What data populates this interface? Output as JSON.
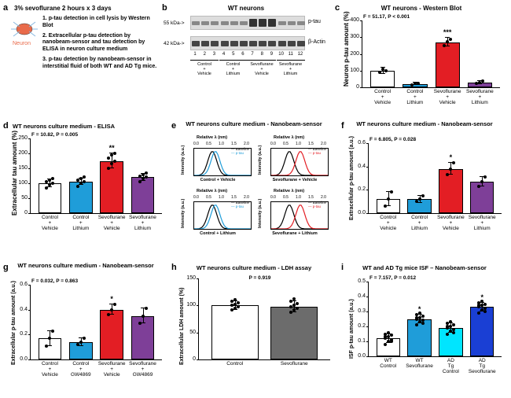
{
  "a": {
    "label": "a",
    "header": "3% sevoflurane 2 hours x 3 days",
    "neuron_label": "Neuron",
    "items": [
      "1. p-tau detection in cell lysis by Western Blot",
      "2. Extracellular p-tau detection by nanobeam-sensor and tau detection by ELISA in neuron culture medium",
      "3. p-tau detection by nanobeam-sensor in interstitial fluid of both WT and AD Tg mice."
    ]
  },
  "b": {
    "label": "b",
    "title": "WT neurons",
    "bands": [
      "p-tau",
      "β-Actin"
    ],
    "kda": [
      "55 kDa->",
      "42 kDa->"
    ],
    "lanes": [
      "1",
      "2",
      "3",
      "4",
      "5",
      "6",
      "7",
      "8",
      "9",
      "10",
      "11",
      "12"
    ],
    "groups": [
      "Control + Vehicle",
      "Control + Lithium",
      "Sevoflurane + Vehicle",
      "Sevoflurane + Lithium"
    ]
  },
  "c": {
    "label": "c",
    "title": "WT neurons - Western Blot",
    "ylab": "Neuron p-tau amount (%)",
    "ftext": "F = 51.17, P < 0.001",
    "ylim": [
      0,
      400
    ],
    "ytick_step": 100,
    "cats": [
      "Control + Vehicle",
      "Control + Lithium",
      "Sevoflurane + Vehicle",
      "Sevoflurane + Lithium"
    ],
    "values": [
      100,
      20,
      270,
      30
    ],
    "err": [
      20,
      8,
      25,
      10
    ],
    "colors": [
      "#ffffff",
      "#1f9dd9",
      "#e31e24",
      "#7e3f98"
    ],
    "sig": {
      "idx": 2,
      "text": "***"
    },
    "points": [
      [
        90,
        110,
        100
      ],
      [
        15,
        22,
        24
      ],
      [
        250,
        275,
        285
      ],
      [
        22,
        28,
        40
      ]
    ]
  },
  "d": {
    "label": "d",
    "title": "WT neurons culture medium - ELISA",
    "ylab": "Extracellular tau amount (%)",
    "ftext": "F = 10.82, P = 0.005",
    "ylim": [
      0,
      250
    ],
    "ytick_step": 50,
    "cats": [
      "Control + Vehicle",
      "Control + Lithium",
      "Sevoflurane + Vehicle",
      "Sevoflurane + Lithium"
    ],
    "values": [
      100,
      105,
      175,
      120
    ],
    "err": [
      12,
      10,
      25,
      12
    ],
    "colors": [
      "#ffffff",
      "#1f9dd9",
      "#e31e24",
      "#7e3f98"
    ],
    "sig": {
      "idx": 2,
      "text": "**"
    },
    "points": [
      [
        85,
        95,
        100,
        105,
        110,
        115
      ],
      [
        90,
        100,
        105,
        110,
        115,
        120
      ],
      [
        150,
        165,
        175,
        185,
        195,
        200
      ],
      [
        105,
        115,
        120,
        125,
        130,
        135
      ]
    ]
  },
  "e": {
    "label": "e",
    "title": "WT neurons culture medium - Nanobeam-sensor",
    "sub_titles": [
      "Control + Vehicle",
      "Sevoflurane + Vehicle",
      "Control + Lithium",
      "Sevoflurane + Lithium"
    ],
    "axis_x": "Relative λ (nm)",
    "axis_y": "Intensity (a.u.)",
    "xticks": [
      "0.0",
      "0.5",
      "1.0",
      "1.5",
      "2.0"
    ],
    "legend": [
      "Baseline",
      "p-tau"
    ],
    "colors": {
      "baseline": "#000000",
      "ctrl": "#1f9dd9",
      "sevo": "#e31e24"
    }
  },
  "f": {
    "label": "f",
    "title": "WT neurons culture medium - Nanobeam-sensor",
    "ylab": "Extracellular p-tau amount (a.u.)",
    "ftext": "F = 6.805, P = 0.028",
    "ylim": [
      0,
      0.6
    ],
    "ytick_step": 0.2,
    "cats": [
      "Control + Vehicle",
      "Control + Lithium",
      "Sevoflurane + Vehicle",
      "Sevoflurane + Lithium"
    ],
    "values": [
      0.12,
      0.12,
      0.38,
      0.27
    ],
    "err": [
      0.06,
      0.03,
      0.05,
      0.04
    ],
    "colors": [
      "#ffffff",
      "#1f9dd9",
      "#e31e24",
      "#7e3f98"
    ],
    "sig": {
      "idx": 2,
      "text": "*"
    },
    "points": [
      [
        0.06,
        0.12,
        0.18
      ],
      [
        0.1,
        0.12,
        0.15
      ],
      [
        0.33,
        0.38,
        0.43
      ],
      [
        0.23,
        0.27,
        0.31
      ]
    ]
  },
  "g": {
    "label": "g",
    "title": "WT neurons culture medium - Nanobeam-sensor",
    "ylab": "Extracellular p-tau amount (a.u.)",
    "ftext": "F = 0.032, P = 0.863",
    "ylim": [
      0,
      0.6
    ],
    "ytick_step": 0.2,
    "cats": [
      "Control + Vehicle",
      "Control + GW4869",
      "Sevoflurane + Vehicle",
      "Sevoflurane + GW4869"
    ],
    "values": [
      0.17,
      0.14,
      0.4,
      0.35
    ],
    "err": [
      0.06,
      0.03,
      0.04,
      0.06
    ],
    "colors": [
      "#ffffff",
      "#1f9dd9",
      "#e31e24",
      "#7e3f98"
    ],
    "sig": {
      "idx": 2,
      "text": "*"
    },
    "points": [
      [
        0.11,
        0.17,
        0.23
      ],
      [
        0.12,
        0.14,
        0.17
      ],
      [
        0.36,
        0.4,
        0.44
      ],
      [
        0.29,
        0.35,
        0.41
      ]
    ]
  },
  "h": {
    "label": "h",
    "title": "WT neurons culture medium - LDH assay",
    "ylab": "Extracellular LDH amount (%)",
    "ptext": "P = 0.919",
    "ylim": [
      0,
      150
    ],
    "ytick_step": 50,
    "cats": [
      "Control",
      "Sevoflurane"
    ],
    "values": [
      100,
      98
    ],
    "err": [
      8,
      10
    ],
    "colors": [
      "#ffffff",
      "#6c6c6c"
    ],
    "points": [
      [
        92,
        95,
        98,
        100,
        102,
        105,
        108,
        110
      ],
      [
        88,
        92,
        95,
        98,
        100,
        104,
        108,
        112
      ]
    ]
  },
  "i": {
    "label": "i",
    "title": "WT and AD Tg mice ISF – Nanobeam-sensor",
    "ylab": "ISF p-tau amount (a.u.)",
    "ftext": "F = 7.157, P = 0.012",
    "ylim": [
      0,
      0.5
    ],
    "ytick_step": 0.1,
    "cats": [
      "WT Control",
      "WT Sevoflurane",
      "AD Tg Control",
      "AD Tg Sevoflurane"
    ],
    "values": [
      0.12,
      0.25,
      0.19,
      0.33
    ],
    "err": [
      0.03,
      0.03,
      0.03,
      0.03
    ],
    "colors": [
      "#ffffff",
      "#1f9dd9",
      "#00e5ff",
      "#1a3fd4"
    ],
    "sig_multi": [
      {
        "idx": 1,
        "text": "*"
      },
      {
        "idx": 3,
        "text": "*"
      }
    ],
    "points": [
      [
        0.08,
        0.1,
        0.11,
        0.12,
        0.13,
        0.14,
        0.15,
        0.16,
        0.1,
        0.13
      ],
      [
        0.21,
        0.23,
        0.24,
        0.25,
        0.26,
        0.27,
        0.28,
        0.29,
        0.22,
        0.26
      ],
      [
        0.15,
        0.17,
        0.18,
        0.19,
        0.2,
        0.21,
        0.22,
        0.23,
        0.16,
        0.2
      ],
      [
        0.29,
        0.31,
        0.32,
        0.33,
        0.34,
        0.35,
        0.36,
        0.37,
        0.3,
        0.34
      ]
    ]
  }
}
